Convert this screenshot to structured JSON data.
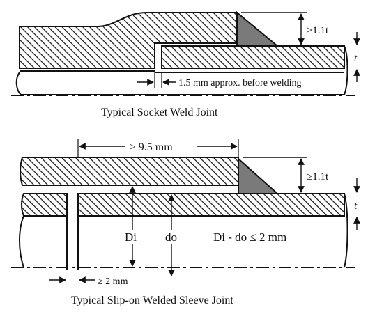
{
  "diagrams": [
    {
      "caption": "Typical Socket Weld Joint",
      "dimensions": {
        "weld_leg": "≥1.1t",
        "thickness": "t",
        "gap": "1.5 mm approx. before welding"
      }
    },
    {
      "caption": "Typical Slip-on Welded Sleeve Joint",
      "dimensions": {
        "overlap": "≥ 9.5 mm",
        "weld_leg": "≥1.1t",
        "thickness": "t",
        "inner_diameter": "Di",
        "outer_diameter": "do",
        "diameter_relation": "Di - do ≤ 2 mm",
        "gap": "≥ 2 mm"
      }
    }
  ],
  "colors": {
    "line": "#111111",
    "hatch": "#111111",
    "weld_fill": "#7a7a7a",
    "background": "#ffffff"
  }
}
